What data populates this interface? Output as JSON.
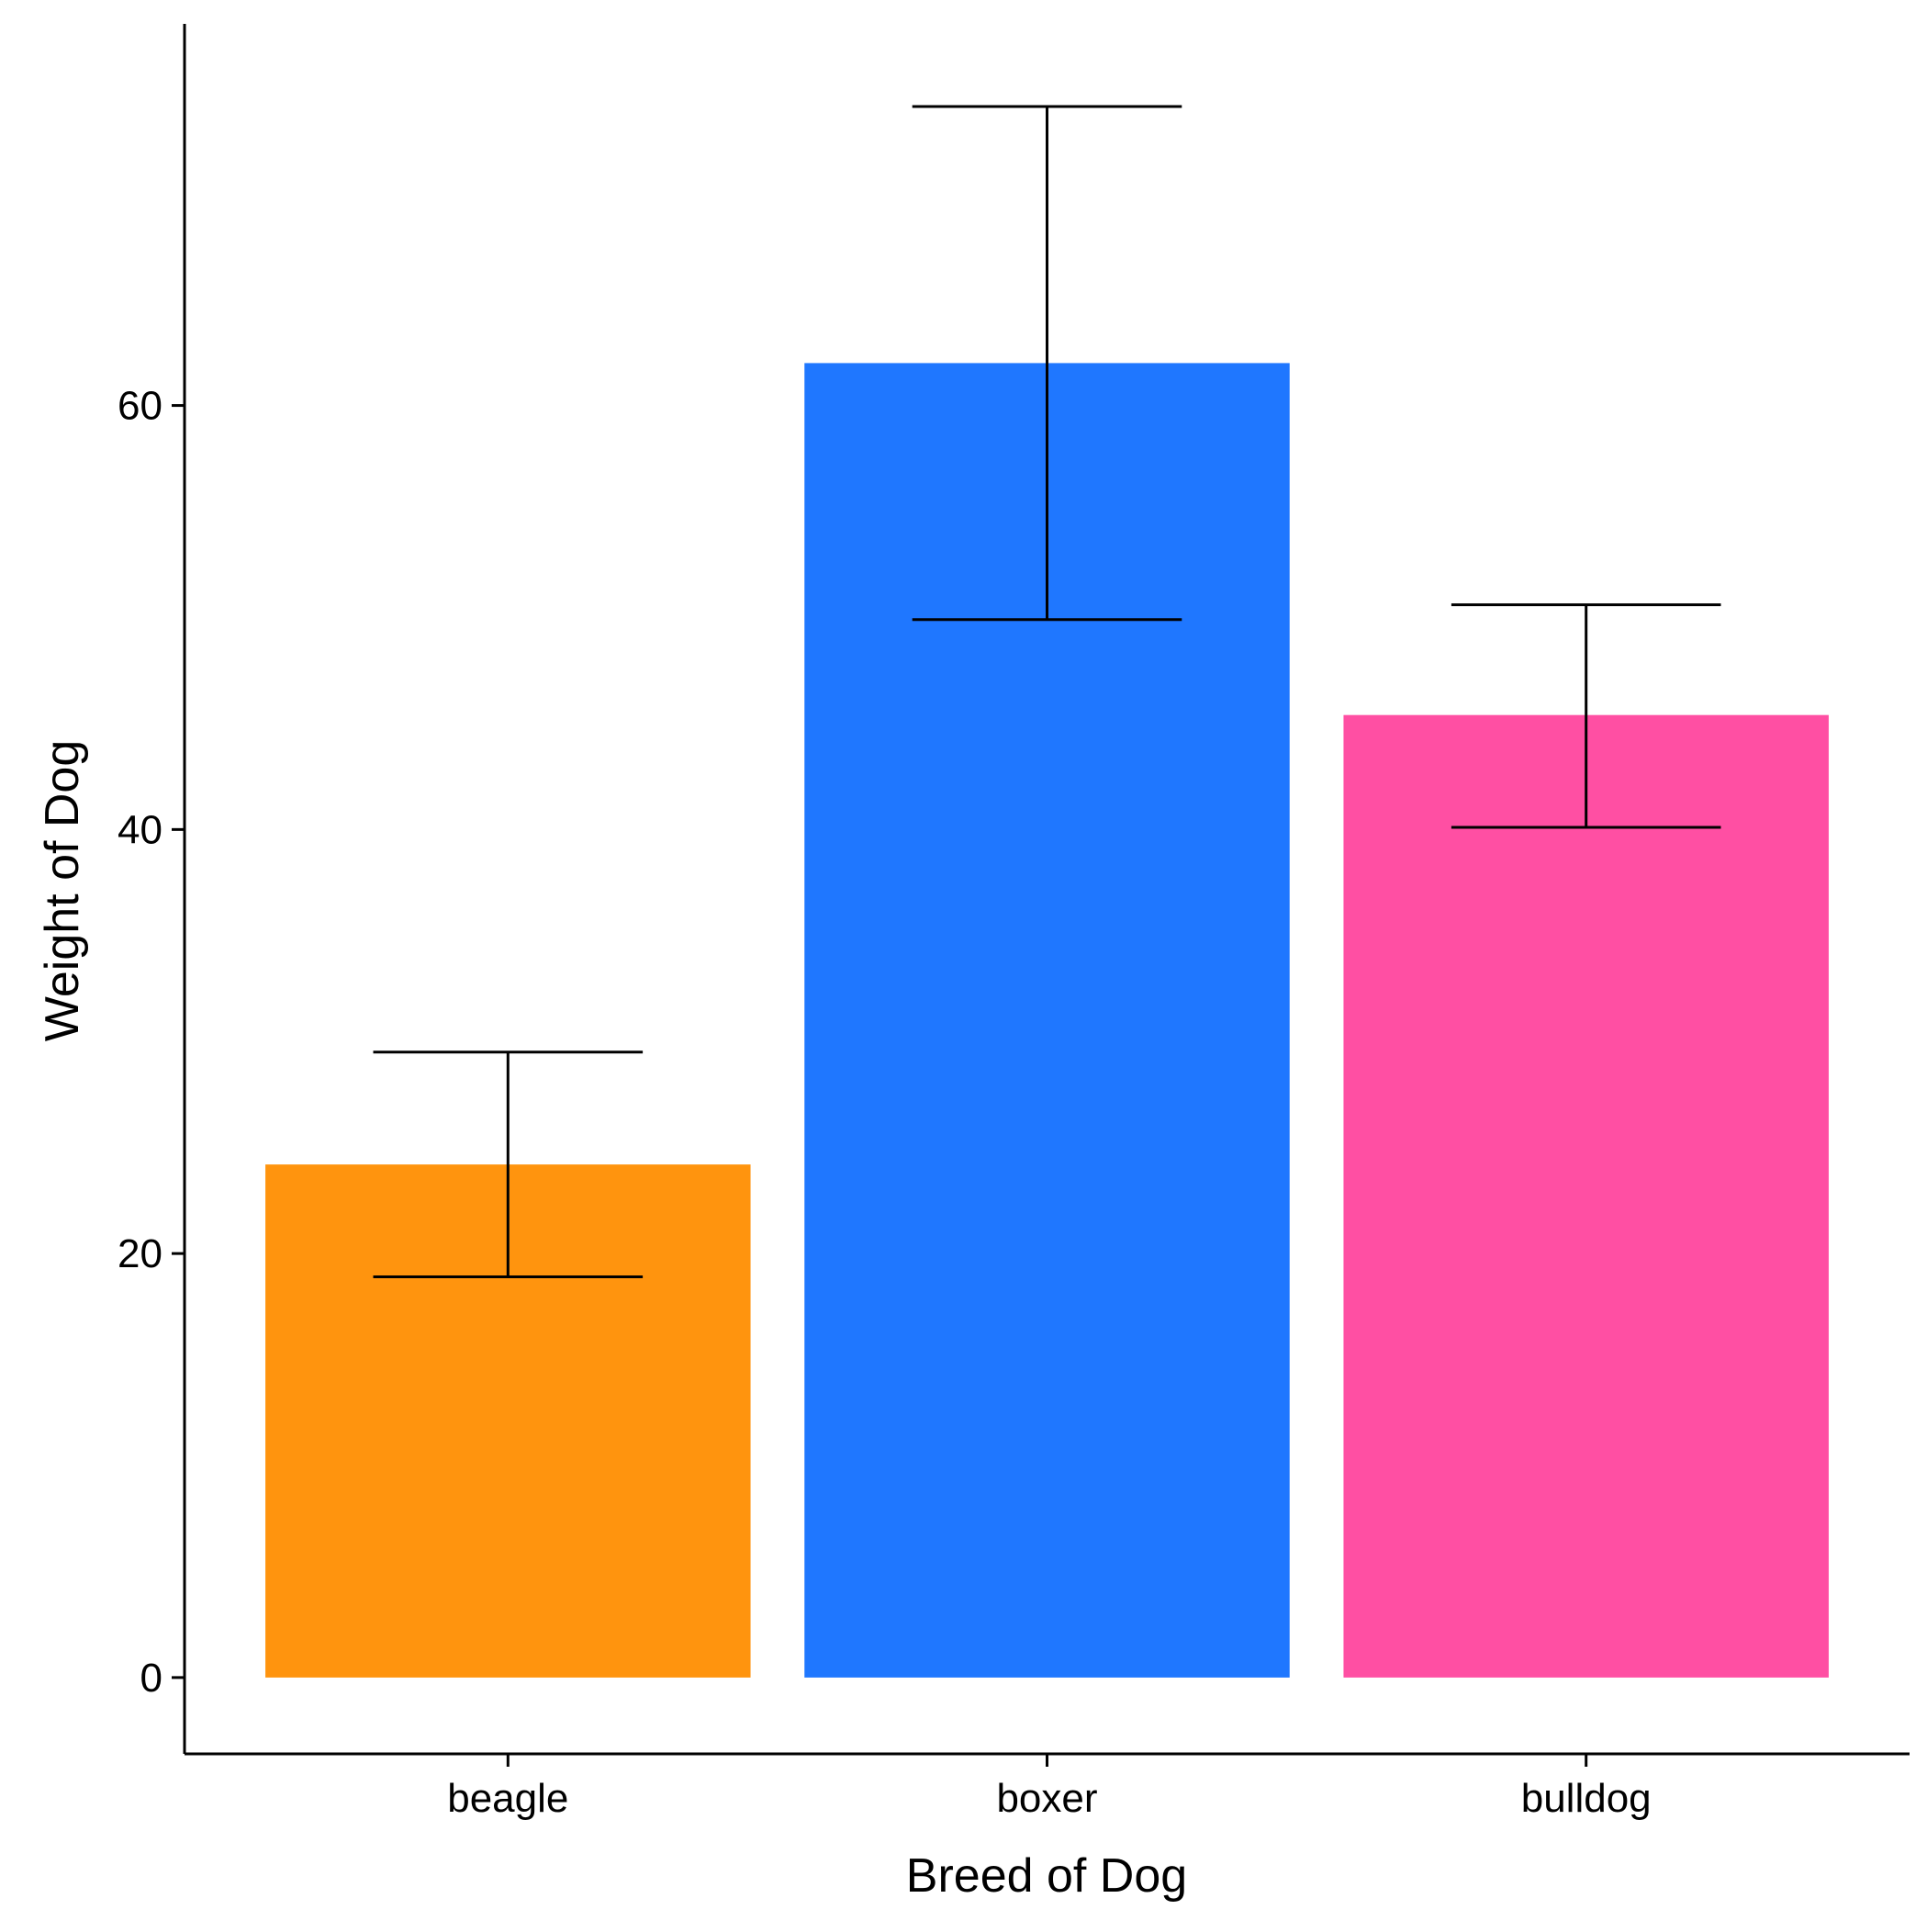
{
  "chart_data": {
    "type": "bar",
    "title": "",
    "xlabel": "Breed of Dog",
    "ylabel": "Weight of Dog",
    "categories": [
      "beagle",
      "boxer",
      "bulldog"
    ],
    "values": [
      24.2,
      62.0,
      45.4
    ],
    "error_bars": {
      "lower": [
        18.9,
        49.9,
        40.1
      ],
      "upper": [
        29.5,
        74.1,
        50.6
      ]
    },
    "colors": [
      "#FF940E",
      "#1F77FF",
      "#FF4FA3"
    ],
    "ylim": [
      -3.6,
      78.0
    ],
    "yticks": [
      0,
      20,
      40,
      60
    ],
    "ytick_labels": [
      "0",
      "20",
      "40",
      "60"
    ],
    "grid": false,
    "legend": "none"
  }
}
